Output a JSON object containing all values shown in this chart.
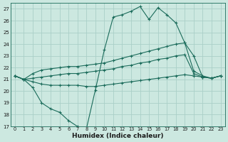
{
  "xlabel": "Humidex (Indice chaleur)",
  "background_color": "#cce8e0",
  "grid_color": "#aacfc8",
  "line_color": "#1a6b5a",
  "ylim": [
    17,
    27.5
  ],
  "xlim": [
    -0.5,
    23.5
  ],
  "yticks": [
    17,
    18,
    19,
    20,
    21,
    22,
    23,
    24,
    25,
    26,
    27
  ],
  "xticks": [
    0,
    1,
    2,
    3,
    4,
    5,
    6,
    7,
    8,
    9,
    10,
    11,
    12,
    13,
    14,
    15,
    16,
    17,
    18,
    19,
    20,
    21,
    22,
    23
  ],
  "series1_x": [
    0,
    1,
    2,
    3,
    4,
    5,
    6,
    7,
    8,
    9,
    10,
    11,
    12,
    13,
    14,
    15,
    16,
    17,
    18,
    19,
    20,
    21,
    22,
    23
  ],
  "series1_y": [
    21.3,
    21.0,
    20.3,
    19.0,
    18.5,
    18.2,
    17.5,
    17.0,
    16.8,
    20.1,
    23.5,
    26.3,
    26.5,
    26.8,
    27.2,
    26.1,
    27.1,
    26.5,
    25.8,
    24.1,
    23.0,
    21.2,
    21.1,
    21.3
  ],
  "series2_x": [
    0,
    1,
    2,
    3,
    4,
    5,
    6,
    7,
    8,
    9,
    10,
    11,
    12,
    13,
    14,
    15,
    16,
    17,
    18,
    19,
    20,
    21,
    22,
    23
  ],
  "series2_y": [
    21.3,
    21.0,
    21.5,
    21.8,
    21.9,
    22.0,
    22.1,
    22.1,
    22.2,
    22.3,
    22.4,
    22.6,
    22.8,
    23.0,
    23.2,
    23.4,
    23.6,
    23.8,
    24.0,
    24.1,
    21.7,
    21.3,
    21.1,
    21.3
  ],
  "series3_x": [
    0,
    1,
    2,
    3,
    4,
    5,
    6,
    7,
    8,
    9,
    10,
    11,
    12,
    13,
    14,
    15,
    16,
    17,
    18,
    19,
    20,
    21,
    22,
    23
  ],
  "series3_y": [
    21.3,
    21.0,
    21.1,
    21.2,
    21.3,
    21.4,
    21.5,
    21.5,
    21.6,
    21.7,
    21.8,
    21.9,
    22.1,
    22.2,
    22.4,
    22.5,
    22.7,
    22.8,
    23.0,
    23.1,
    21.5,
    21.2,
    21.1,
    21.3
  ],
  "series4_x": [
    0,
    1,
    2,
    3,
    4,
    5,
    6,
    7,
    8,
    9,
    10,
    11,
    12,
    13,
    14,
    15,
    16,
    17,
    18,
    19,
    20,
    21,
    22,
    23
  ],
  "series4_y": [
    21.3,
    21.0,
    20.8,
    20.6,
    20.5,
    20.5,
    20.5,
    20.5,
    20.4,
    20.4,
    20.5,
    20.6,
    20.7,
    20.8,
    20.9,
    21.0,
    21.1,
    21.2,
    21.3,
    21.4,
    21.3,
    21.2,
    21.1,
    21.3
  ]
}
